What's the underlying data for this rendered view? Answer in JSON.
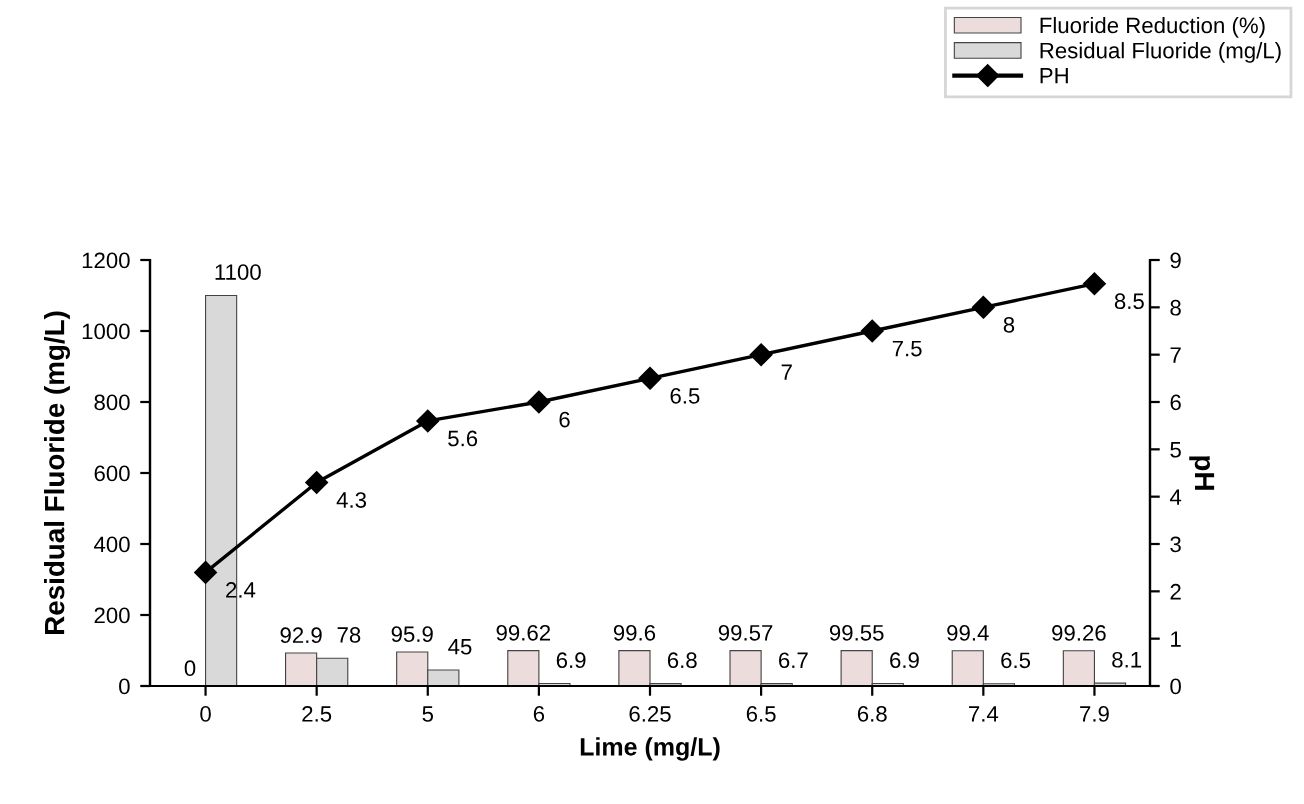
{
  "chart_data": {
    "type": "bar",
    "xlabel": "Lime (mg/L)",
    "ylabel": "Residual Fluoride (mg/L)",
    "y2label": "pH",
    "categories": [
      "0",
      "2.5",
      "5",
      "6",
      "6.25",
      "6.5",
      "6.8",
      "7.4",
      "7.9"
    ],
    "series": [
      {
        "name": "Fluoride Reduction (%)",
        "color": "#ecdcdc",
        "values": [
          0,
          92.9,
          95.9,
          99.62,
          99.6,
          99.57,
          99.55,
          99.4,
          99.26
        ]
      },
      {
        "name": "Residual Fluoride (mg/L)",
        "color": "#d9d9d9",
        "values": [
          1100,
          78,
          45,
          6.9,
          6.8,
          6.7,
          6.9,
          6.5,
          8.1
        ]
      },
      {
        "name": "PH",
        "type": "line",
        "axis": "y2",
        "color": "#000000",
        "marker": "diamond",
        "values": [
          2.4,
          4.3,
          5.6,
          6,
          6.5,
          7,
          7.5,
          8,
          8.5
        ]
      }
    ],
    "ylim": [
      0,
      1200
    ],
    "yticks": [
      0,
      200,
      400,
      600,
      800,
      1000,
      1200
    ],
    "y2lim": [
      0,
      9
    ],
    "y2ticks": [
      0,
      1,
      2,
      3,
      4,
      5,
      6,
      7,
      8,
      9
    ],
    "data_labels": true,
    "legend": "top right",
    "grid": false
  }
}
